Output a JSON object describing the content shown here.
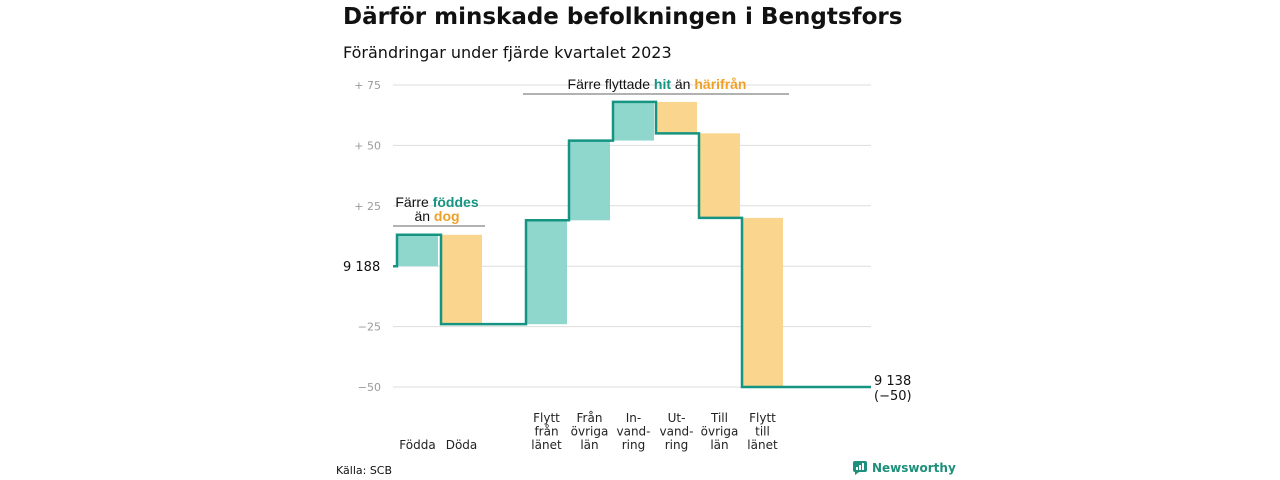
{
  "colors": {
    "increase": "#8fd6cc",
    "decrease": "#fad58e",
    "line": "#159482",
    "green_text": "#159482",
    "orange_text": "#f0a027",
    "grid": "#dddddd"
  },
  "chart_data": {
    "type": "waterfall",
    "title": "Därför minskade befolkningen i Bengtsfors",
    "subtitle": "Förändringar under fjärde kvartalet 2023",
    "start_value": 9188,
    "start_label": "9 188",
    "end_label": "9 138",
    "end_change_label": "(−50)",
    "ylim": [
      -50,
      75
    ],
    "y_ticks": [
      {
        "value": 75,
        "label": "+ 75"
      },
      {
        "value": 50,
        "label": "+ 50"
      },
      {
        "value": 25,
        "label": "+ 25"
      },
      {
        "value": 0,
        "label": ""
      },
      {
        "value": -25,
        "label": "−25"
      },
      {
        "value": -50,
        "label": "−50"
      }
    ],
    "steps": [
      {
        "category": [
          "Födda"
        ],
        "change": 13
      },
      {
        "category": [
          "Döda"
        ],
        "change": -37
      },
      {
        "category": [
          "Flytt",
          "från",
          "länet"
        ],
        "change": 43
      },
      {
        "category": [
          "Från",
          "övriga",
          "län"
        ],
        "change": 33
      },
      {
        "category": [
          "In-",
          "vand-",
          "ring"
        ],
        "change": 16
      },
      {
        "category": [
          "Ut-",
          "vand-",
          "ring"
        ],
        "change": -13
      },
      {
        "category": [
          "Till",
          "övriga",
          "län"
        ],
        "change": -35
      },
      {
        "category": [
          "Flytt",
          "till",
          "länet"
        ],
        "change": -70
      }
    ],
    "annotations": {
      "births": {
        "line1": "Färre",
        "line1_em": "föddes",
        "line2": "än",
        "line2_em": "dog"
      },
      "migration": {
        "text1": "Färre flyttade",
        "em1": "hit",
        "text2": "än",
        "em2": "härifrån"
      }
    }
  },
  "footer": {
    "source": "Källa: SCB",
    "brand": "Newsworthy"
  }
}
